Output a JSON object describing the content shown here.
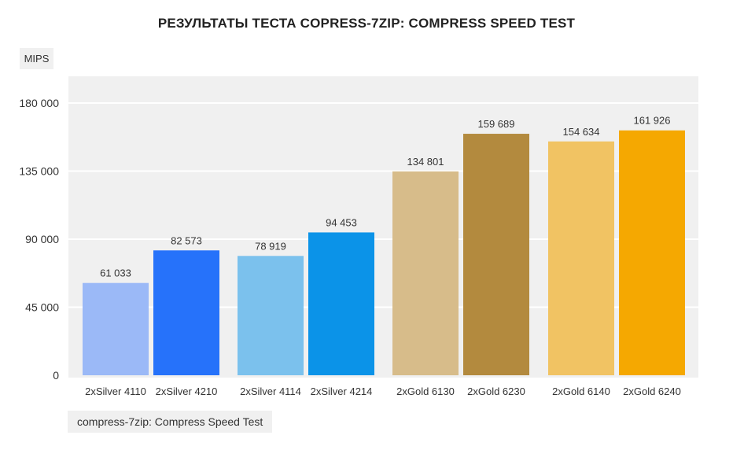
{
  "chart_data": {
    "type": "bar",
    "title": "РЕЗУЛЬТАТЫ ТЕСТА COPRESS-7ZIP: COMPRESS SPEED TEST",
    "ylabel": "MIPS",
    "ylim": [
      0,
      180000
    ],
    "yticks": [
      0,
      45000,
      90000,
      135000,
      180000
    ],
    "ytick_labels": [
      "0",
      "45 000",
      "90 000",
      "135 000",
      "180 000"
    ],
    "grid": true,
    "legend": "compress-7zip: Compress Speed Test",
    "legend_placement": "bottom-left",
    "groups": [
      {
        "bars": [
          {
            "category": "2xSilver 4110",
            "value": 61033,
            "label": "61 033",
            "color": "#9bb9f7"
          },
          {
            "category": "2xSilver 4210",
            "value": 82573,
            "label": "82 573",
            "color": "#2672fa"
          }
        ]
      },
      {
        "bars": [
          {
            "category": "2xSilver 4114",
            "value": 78919,
            "label": "78 919",
            "color": "#7bc1ed"
          },
          {
            "category": "2xSilver 4214",
            "value": 94453,
            "label": "94 453",
            "color": "#0b93e8"
          }
        ]
      },
      {
        "bars": [
          {
            "category": "2xGold 6130",
            "value": 134801,
            "label": "134 801",
            "color": "#d7bc8a"
          },
          {
            "category": "2xGold 6230",
            "value": 159689,
            "label": "159 689",
            "color": "#b38a3e"
          }
        ]
      },
      {
        "bars": [
          {
            "category": "2xGold 6140",
            "value": 154634,
            "label": "154 634",
            "color": "#f1c363"
          },
          {
            "category": "2xGold 6240",
            "value": 161926,
            "label": "161 926",
            "color": "#f5a801"
          }
        ]
      }
    ],
    "colors": {
      "panel": "#f0f0f0",
      "grid": "#ffffff",
      "value_text": "#333333"
    }
  }
}
